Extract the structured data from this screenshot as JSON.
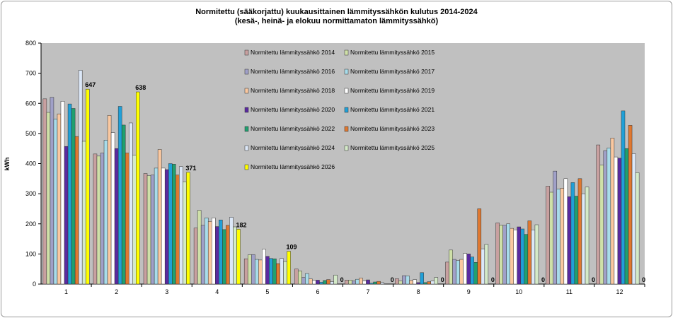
{
  "chart_data": {
    "type": "bar",
    "title": "Normitettu (sääkorjattu) kuukausittainen lämmityssähkön kulutus 2014-2024",
    "subtitle": "(kesä-, heinä- ja elokuu normittamaton lämmityssähkö)",
    "ylabel": "kWh",
    "xlabel": "",
    "ylim": [
      0,
      800
    ],
    "yticks": [
      0,
      100,
      200,
      300,
      400,
      500,
      600,
      700,
      800
    ],
    "grid": false,
    "legend_position": "inside-top-center",
    "categories": [
      "1",
      "2",
      "3",
      "4",
      "5",
      "6",
      "7",
      "8",
      "9",
      "10",
      "11",
      "12"
    ],
    "series": [
      {
        "name": "Normitettu lämmityssähkö 2014",
        "color": "#c8a0a0",
        "values": [
          615,
          432,
          367,
          186,
          84,
          50,
          13,
          18,
          73,
          203,
          325,
          462
        ]
      },
      {
        "name": "Normitettu lämmityssähkö 2015",
        "color": "#cfe0a8",
        "values": [
          570,
          425,
          360,
          245,
          97,
          44,
          13,
          10,
          113,
          195,
          305,
          395
        ]
      },
      {
        "name": "Normitettu lämmityssähkö 2016",
        "color": "#a0a0c8",
        "values": [
          620,
          435,
          362,
          195,
          98,
          22,
          10,
          28,
          82,
          195,
          375,
          443
        ]
      },
      {
        "name": "Normitettu lämmityssähkö 2017",
        "color": "#a8dcea",
        "values": [
          548,
          478,
          385,
          220,
          82,
          35,
          16,
          27,
          78,
          200,
          315,
          452
        ]
      },
      {
        "name": "Normitettu lämmityssähkö 2018",
        "color": "#fac8a0",
        "values": [
          565,
          560,
          447,
          208,
          80,
          17,
          20,
          12,
          82,
          185,
          318,
          485
        ]
      },
      {
        "name": "Normitettu lämmityssähkö 2019",
        "color": "#ffffff",
        "values": [
          607,
          503,
          385,
          220,
          116,
          12,
          10,
          15,
          102,
          180,
          350,
          422
        ]
      },
      {
        "name": "Normitettu lämmityssähkö 2020",
        "color": "#5a2aa0",
        "values": [
          457,
          450,
          380,
          191,
          92,
          13,
          14,
          5,
          100,
          190,
          290,
          418
        ]
      },
      {
        "name": "Normitettu lämmityssähkö 2021",
        "color": "#20a0d8",
        "values": [
          598,
          590,
          400,
          213,
          85,
          6,
          3,
          38,
          90,
          183,
          337,
          575
        ]
      },
      {
        "name": "Normitettu lämmityssähkö 2022",
        "color": "#20a070",
        "values": [
          583,
          528,
          398,
          181,
          84,
          12,
          7,
          5,
          72,
          165,
          292,
          450
        ]
      },
      {
        "name": "Normitettu lämmityssähkö 2023",
        "color": "#e07830",
        "values": [
          490,
          435,
          362,
          195,
          68,
          15,
          9,
          8,
          250,
          210,
          350,
          527
        ]
      },
      {
        "name": "Normitettu lämmityssähkö 2024",
        "color": "#dce8f8",
        "values": [
          710,
          535,
          390,
          222,
          85,
          8,
          5,
          10,
          117,
          180,
          300,
          433
        ]
      },
      {
        "name": "Normitettu lämmityssähkö 2025",
        "color": "#d4eac8",
        "values": [
          474,
          428,
          340,
          190,
          75,
          30,
          0,
          22,
          132,
          197,
          322,
          370
        ]
      },
      {
        "name": "Normitettu lämmityssähkö 2026",
        "color": "#ffff00",
        "values": [
          647,
          638,
          371,
          182,
          109,
          0,
          0,
          0,
          0,
          0,
          0,
          0
        ]
      }
    ],
    "labeled_series": "Normitettu lämmityssähkö 2026",
    "data_labels": [
      "647",
      "638",
      "371",
      "182",
      "109",
      "0",
      "0",
      "0",
      "0",
      "0",
      "0",
      "0"
    ]
  }
}
